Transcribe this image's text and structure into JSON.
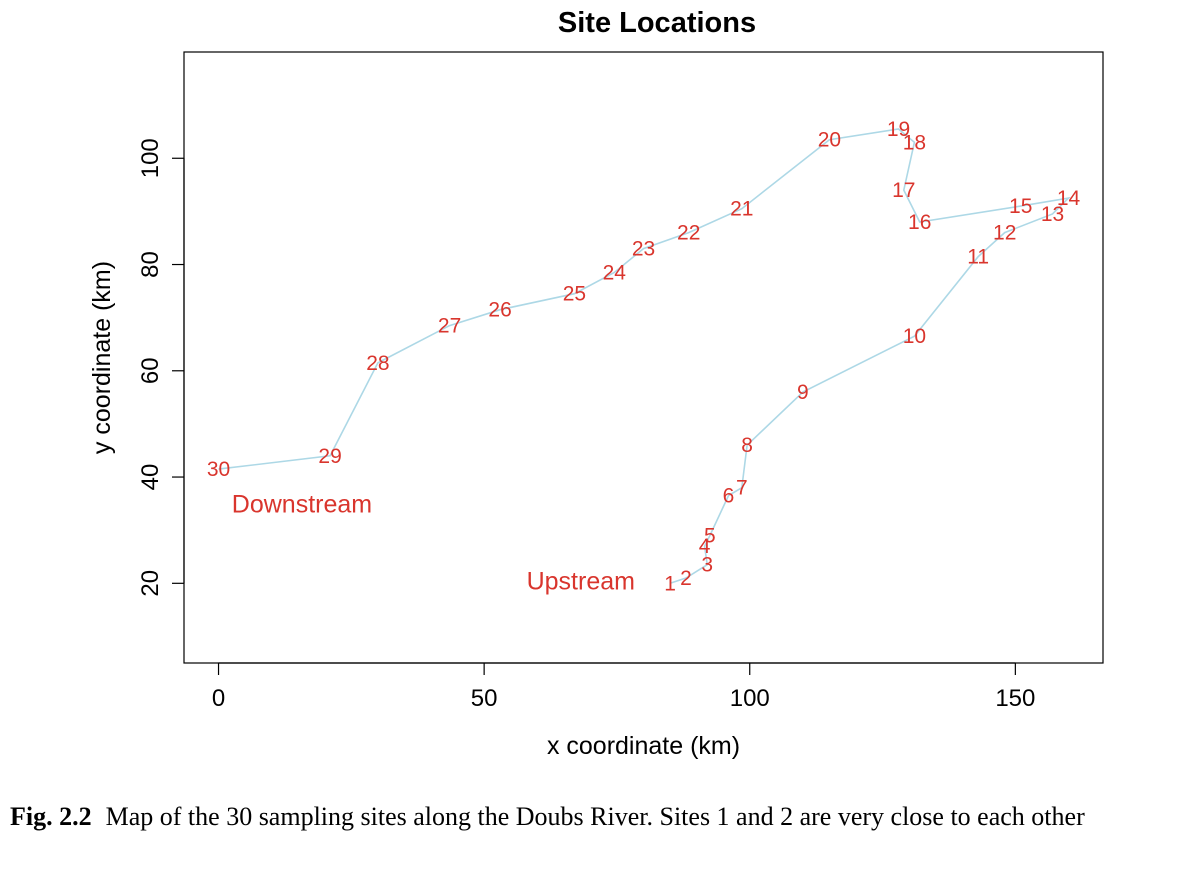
{
  "chart_data": {
    "type": "line",
    "title": "Site Locations",
    "xlabel": "x coordinate (km)",
    "ylabel": "y coordinate (km)",
    "xlim": [
      -6.5,
      166.5
    ],
    "ylim": [
      5,
      120
    ],
    "xticks": [
      0,
      50,
      100,
      150
    ],
    "yticks": [
      20,
      40,
      60,
      80,
      100
    ],
    "grid": false,
    "line_color": "#add8e6",
    "label_color": "#d9352d",
    "points": [
      {
        "label": "1",
        "x": 85,
        "y": 20
      },
      {
        "label": "2",
        "x": 88,
        "y": 21
      },
      {
        "label": "3",
        "x": 92,
        "y": 23.5
      },
      {
        "label": "4",
        "x": 91.5,
        "y": 27
      },
      {
        "label": "5",
        "x": 92.5,
        "y": 29
      },
      {
        "label": "6",
        "x": 96,
        "y": 36.5
      },
      {
        "label": "7",
        "x": 98.5,
        "y": 38
      },
      {
        "label": "8",
        "x": 99.5,
        "y": 46
      },
      {
        "label": "9",
        "x": 110,
        "y": 56
      },
      {
        "label": "10",
        "x": 131,
        "y": 66.5
      },
      {
        "label": "11",
        "x": 143,
        "y": 81.5
      },
      {
        "label": "12",
        "x": 148,
        "y": 86
      },
      {
        "label": "13",
        "x": 157,
        "y": 89.5
      },
      {
        "label": "14",
        "x": 160,
        "y": 92.5
      },
      {
        "label": "15",
        "x": 151,
        "y": 91
      },
      {
        "label": "16",
        "x": 132,
        "y": 88
      },
      {
        "label": "17",
        "x": 129,
        "y": 94
      },
      {
        "label": "18",
        "x": 131,
        "y": 103
      },
      {
        "label": "19",
        "x": 128,
        "y": 105.5
      },
      {
        "label": "20",
        "x": 115,
        "y": 103.5
      },
      {
        "label": "21",
        "x": 98.5,
        "y": 90.5
      },
      {
        "label": "22",
        "x": 88.5,
        "y": 86
      },
      {
        "label": "23",
        "x": 80,
        "y": 83
      },
      {
        "label": "24",
        "x": 74.5,
        "y": 78.5
      },
      {
        "label": "25",
        "x": 67,
        "y": 74.5
      },
      {
        "label": "26",
        "x": 53,
        "y": 71.5
      },
      {
        "label": "27",
        "x": 43.5,
        "y": 68.5
      },
      {
        "label": "28",
        "x": 30,
        "y": 61.5
      },
      {
        "label": "29",
        "x": 21,
        "y": 44
      },
      {
        "label": "30",
        "x": 0,
        "y": 41.5
      }
    ],
    "annotations": [
      {
        "text": "Downstream",
        "x": 2.5,
        "y": 35
      },
      {
        "text": "Upstream",
        "x": 58,
        "y": 20.5
      }
    ]
  },
  "caption": {
    "figure_number": "Fig. 2.2",
    "text": "Map of the 30 sampling sites along the Doubs River. Sites 1 and 2 are very close to each other"
  }
}
